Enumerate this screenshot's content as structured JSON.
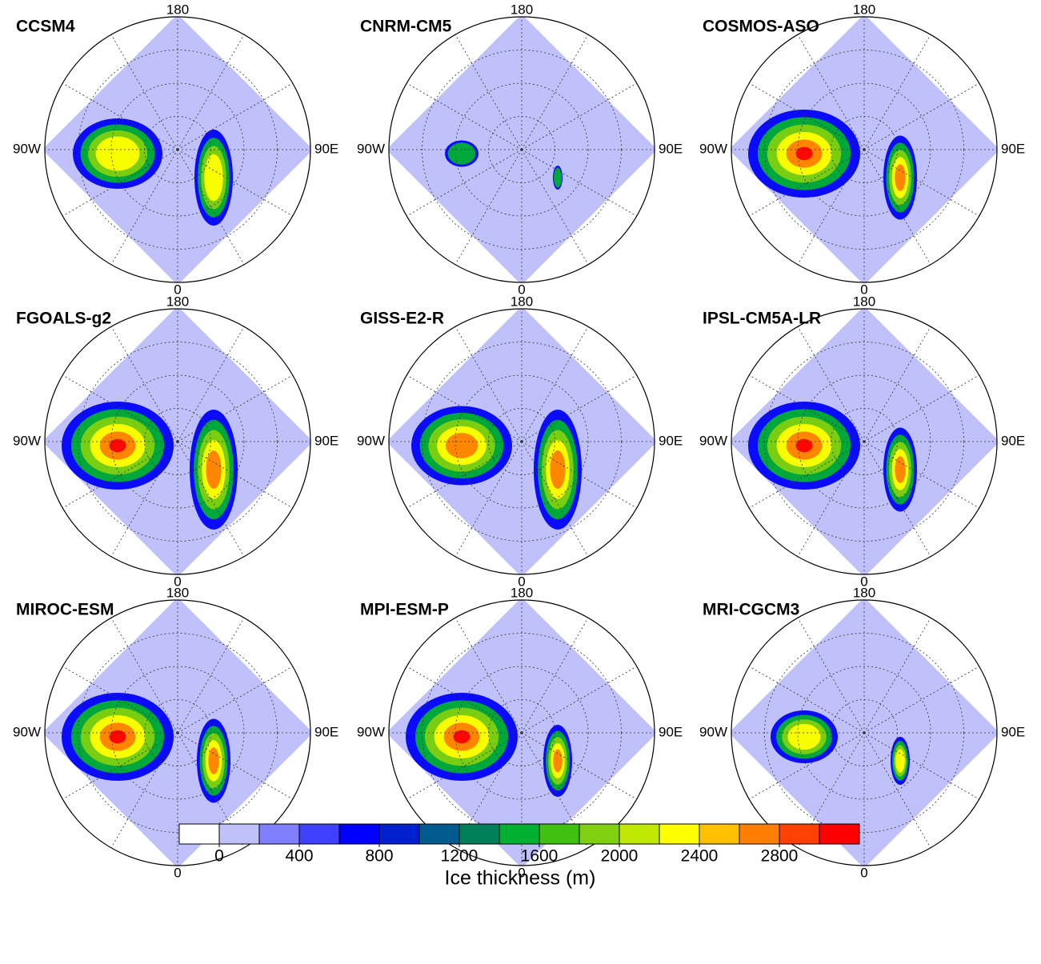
{
  "panels": [
    {
      "title": "CCSM4",
      "labels": {
        "top": "180",
        "bottom": "0",
        "left": "90W",
        "right": "90E"
      }
    },
    {
      "title": "CNRM-CM5",
      "labels": {
        "top": "180",
        "bottom": "0",
        "left": "90W",
        "right": "90E"
      }
    },
    {
      "title": "COSMOS-ASO",
      "labels": {
        "top": "180",
        "bottom": "0",
        "left": "90W",
        "right": "90E"
      }
    },
    {
      "title": "FGOALS-g2",
      "labels": {
        "top": "180",
        "bottom": "0",
        "left": "90W",
        "right": "90E"
      }
    },
    {
      "title": "GISS-E2-R",
      "labels": {
        "top": "180",
        "bottom": "0",
        "left": "90W",
        "right": "90E"
      }
    },
    {
      "title": "IPSL-CM5A-LR",
      "labels": {
        "top": "180",
        "bottom": "0",
        "left": "90W",
        "right": "90E"
      }
    },
    {
      "title": "MIROC-ESM",
      "labels": {
        "top": "180",
        "bottom": "0",
        "left": "90W",
        "right": "90E"
      }
    },
    {
      "title": "MPI-ESM-P",
      "labels": {
        "top": "180",
        "bottom": "0",
        "left": "90W",
        "right": "90E"
      }
    },
    {
      "title": "MRI-CGCM3",
      "labels": {
        "top": "180",
        "bottom": "0",
        "left": "90W",
        "right": "90E"
      }
    }
  ],
  "colorbar": {
    "label": "Ice thickness (m)",
    "levels": [
      0,
      200,
      400,
      600,
      800,
      1000,
      1200,
      1400,
      1600,
      1800,
      2000,
      2200,
      2400,
      2600,
      2800,
      3000
    ],
    "ticks": [
      0,
      400,
      800,
      1200,
      1600,
      2000,
      2400,
      2800
    ],
    "colors": [
      "#ffffff",
      "#c0c0fa",
      "#8080ff",
      "#4040ff",
      "#0000ff",
      "#0020d0",
      "#005a8c",
      "#00805a",
      "#00b030",
      "#40c010",
      "#80d010",
      "#c0e800",
      "#ffff00",
      "#ffc000",
      "#ff8000",
      "#ff4000",
      "#ff0000"
    ]
  }
}
